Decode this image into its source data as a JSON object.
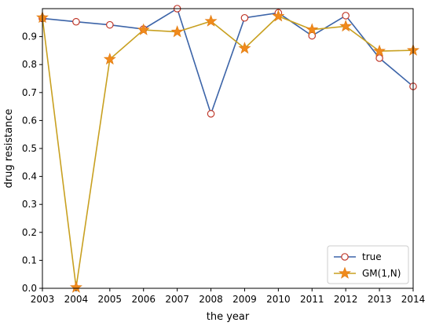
{
  "chart_data": {
    "type": "line",
    "title": "",
    "xlabel": "the year",
    "ylabel": "drug resistance",
    "x": [
      2003,
      2004,
      2005,
      2006,
      2007,
      2008,
      2009,
      2010,
      2011,
      2012,
      2013,
      2014
    ],
    "xlim": [
      2003,
      2014
    ],
    "ylim": [
      0.0,
      1.0
    ],
    "xticks": [
      "2003",
      "2004",
      "2005",
      "2006",
      "2007",
      "2008",
      "2009",
      "2010",
      "2011",
      "2012",
      "2013",
      "2014"
    ],
    "yticks": [
      "0.0",
      "0.1",
      "0.2",
      "0.3",
      "0.4",
      "0.5",
      "0.6",
      "0.7",
      "0.8",
      "0.9"
    ],
    "grid": false,
    "legend_position": "lower-right",
    "series": [
      {
        "name": "true",
        "color": "#3c64a8",
        "marker": "circle",
        "values": [
          0.965,
          0.953,
          0.942,
          0.927,
          1.0,
          0.624,
          0.967,
          0.985,
          0.903,
          0.975,
          0.823,
          0.722
        ]
      },
      {
        "name": "GM(1,N)",
        "color": "#c8a020",
        "marker": "star",
        "values": [
          0.968,
          0.003,
          0.819,
          0.924,
          0.917,
          0.955,
          0.858,
          0.973,
          0.925,
          0.937,
          0.848,
          0.851
        ]
      }
    ]
  }
}
